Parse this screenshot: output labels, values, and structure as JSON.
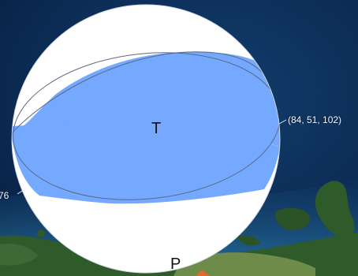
{
  "map": {
    "colors": {
      "ocean_deep": "#0b2a52",
      "ocean_shallow": "#1e5f8f",
      "land": "#2f5a2a",
      "land_light": "#6e8b49",
      "arrow": "#e06a2c"
    }
  },
  "beachball": {
    "compression_color": "#ffffff",
    "tension_color": "#74a9ff",
    "outline_color": "#5a6a85",
    "t_axis_label": "T",
    "p_axis_label": "P",
    "plane_right_label": "(84, 51, 102)",
    "plane_left_label": "76)"
  }
}
